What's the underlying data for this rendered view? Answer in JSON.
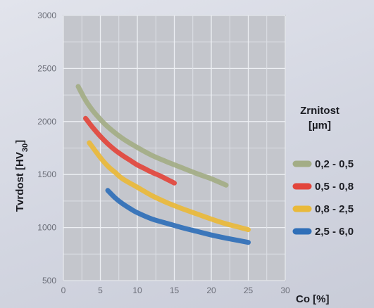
{
  "chart_data": {
    "type": "line",
    "xlabel": "Co [%]",
    "ylabel_prefix": "Tvrdost [HV",
    "ylabel_sub": "30",
    "ylabel_suffix": "]",
    "xlim": [
      0,
      30
    ],
    "ylim": [
      500,
      3000
    ],
    "x_ticks": [
      "0",
      "5",
      "10",
      "15",
      "20",
      "25",
      "30"
    ],
    "y_ticks": [
      "500",
      "1000",
      "1500",
      "2000",
      "2500",
      "3000"
    ],
    "grid": true,
    "legend": {
      "title_line1": "Zrnitost",
      "title_line2": "[µm]",
      "placement": "right"
    },
    "series": [
      {
        "name": "0,2 - 0,5",
        "color": "#a3ad86",
        "x": [
          2,
          3,
          4,
          5,
          6,
          8,
          10,
          12,
          14,
          16,
          18,
          20,
          22
        ],
        "y": [
          2330,
          2200,
          2100,
          2020,
          1950,
          1840,
          1755,
          1680,
          1620,
          1565,
          1510,
          1460,
          1400
        ]
      },
      {
        "name": "0,5 - 0,8",
        "color": "#e2453c",
        "x": [
          3,
          4,
          5,
          6,
          7,
          8,
          9,
          10,
          11,
          12,
          13,
          14,
          15
        ],
        "y": [
          2030,
          1940,
          1860,
          1790,
          1730,
          1680,
          1635,
          1590,
          1555,
          1520,
          1490,
          1455,
          1420
        ]
      },
      {
        "name": "0,8 - 2,5",
        "color": "#e9b93a",
        "x": [
          3.5,
          5,
          6,
          7,
          8,
          10,
          12,
          14,
          16,
          18,
          20,
          22,
          25
        ],
        "y": [
          1800,
          1660,
          1580,
          1520,
          1460,
          1380,
          1300,
          1235,
          1180,
          1130,
          1080,
          1035,
          980
        ]
      },
      {
        "name": "2,5 - 6,0",
        "color": "#2f6fb8",
        "x": [
          6,
          7,
          8,
          9,
          10,
          12,
          14,
          16,
          18,
          20,
          22,
          25
        ],
        "y": [
          1350,
          1280,
          1225,
          1180,
          1140,
          1080,
          1040,
          1000,
          965,
          930,
          900,
          860
        ]
      }
    ]
  }
}
